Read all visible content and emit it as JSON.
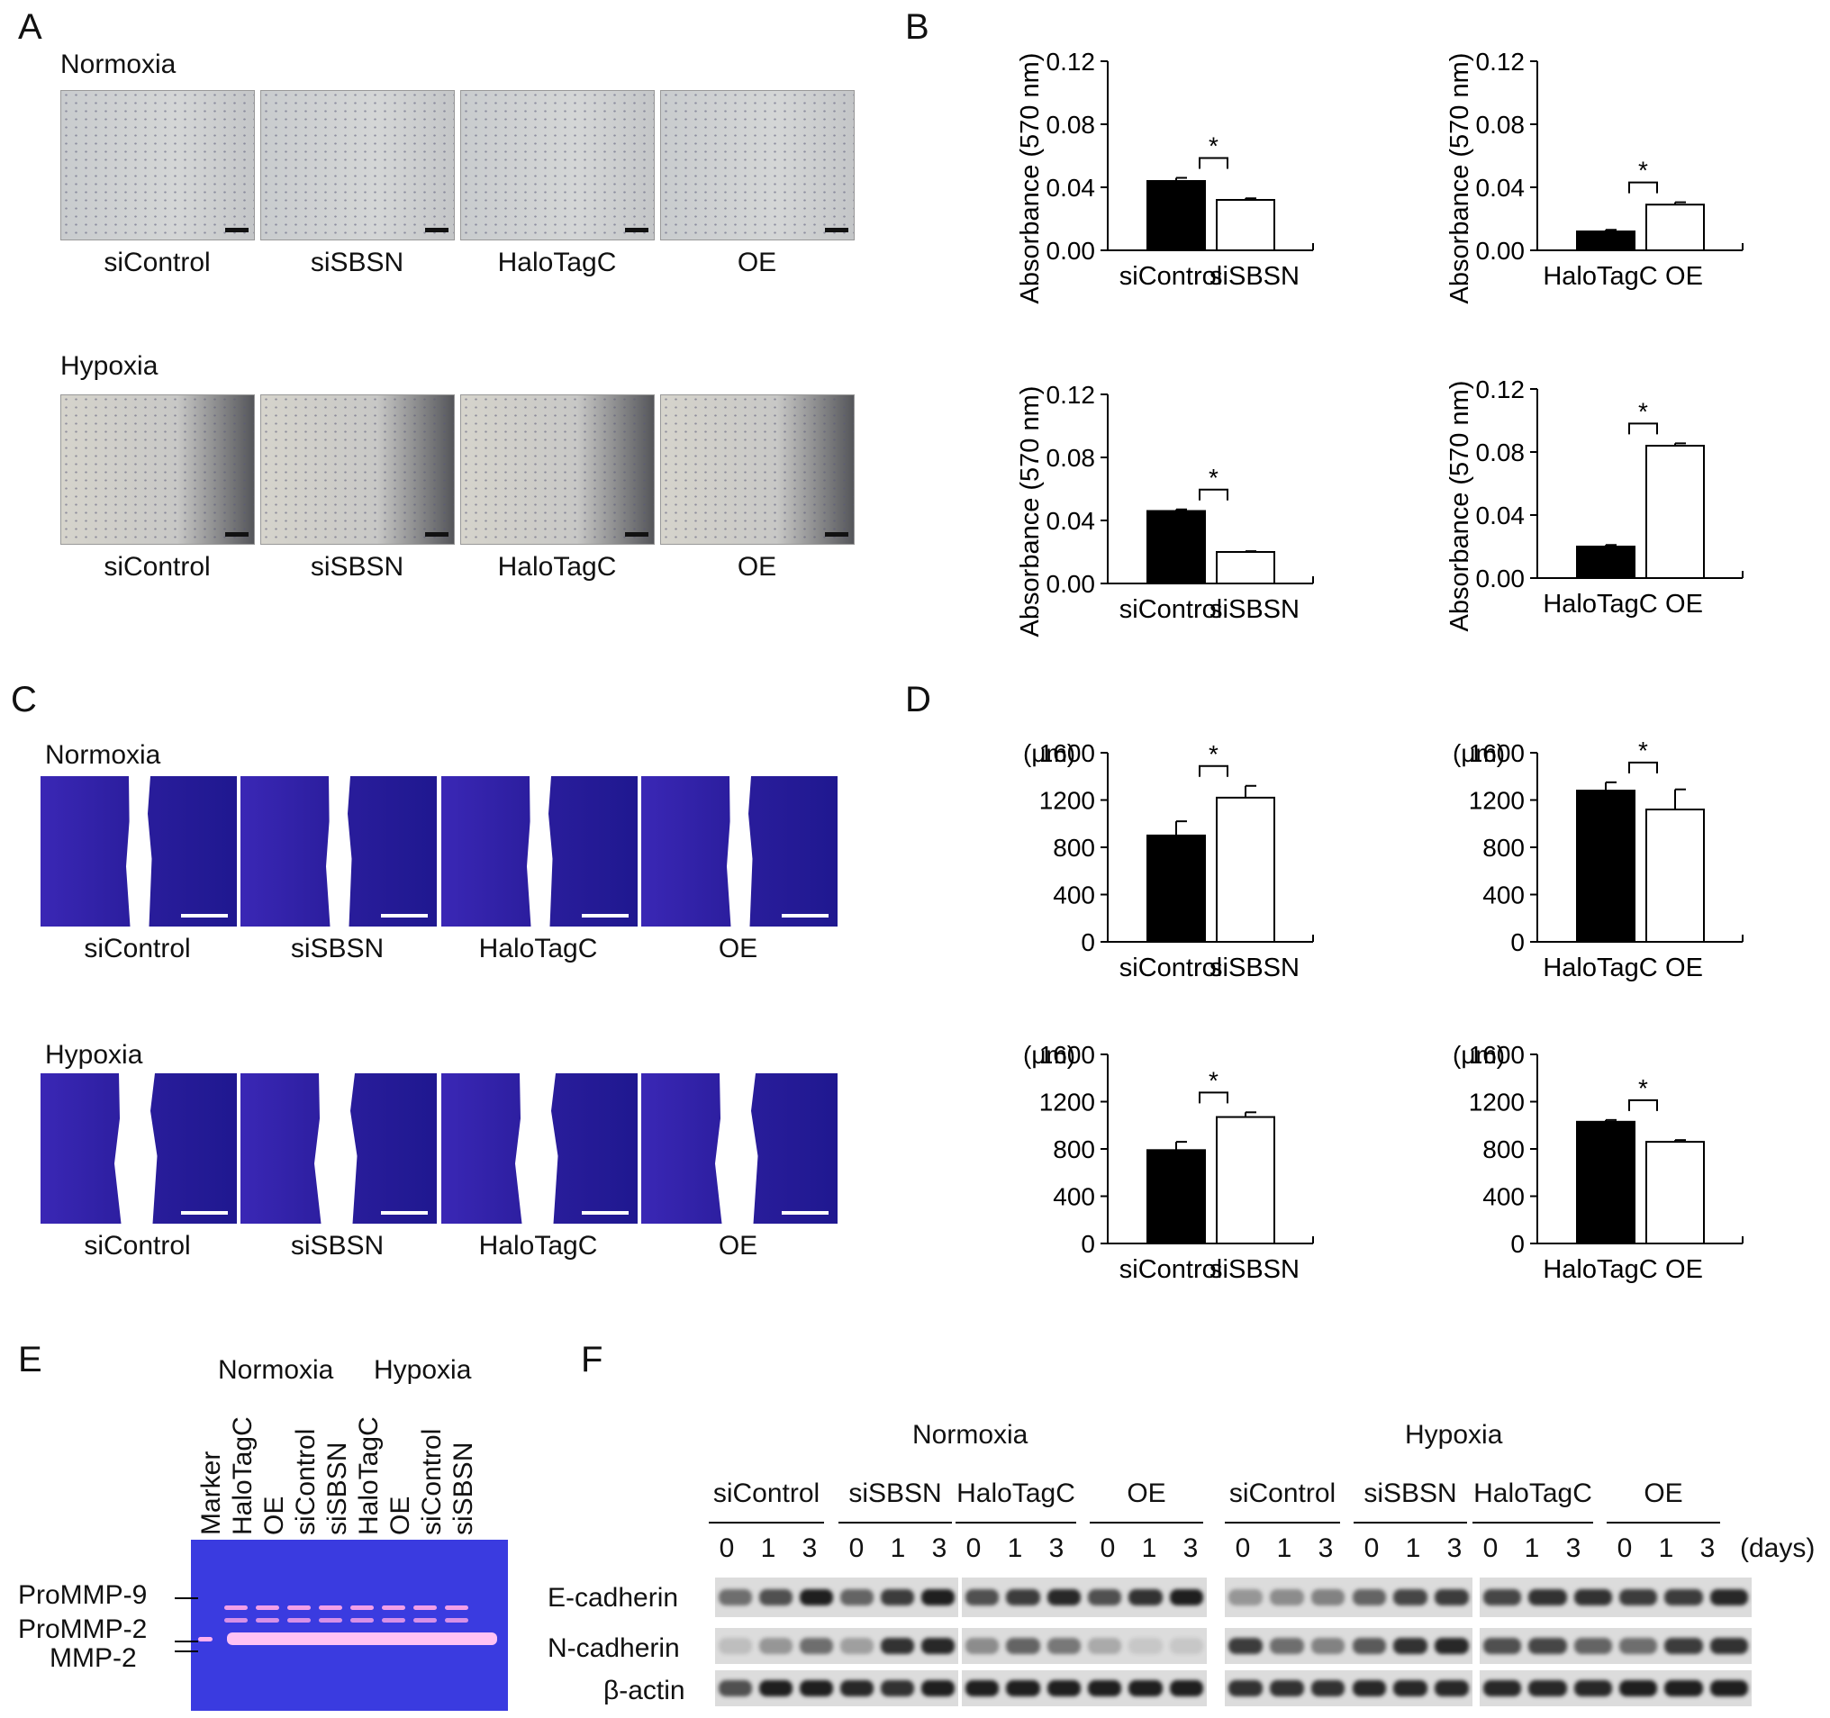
{
  "panels": {
    "A": {
      "letter": "A",
      "rows": [
        {
          "condition": "Normoxia",
          "labels": [
            "siControl",
            "siSBSN",
            "HaloTagC",
            "OE"
          ]
        },
        {
          "condition": "Hypoxia",
          "labels": [
            "siControl",
            "siSBSN",
            "HaloTagC",
            "OE"
          ]
        }
      ]
    },
    "B": {
      "letter": "B"
    },
    "C": {
      "letter": "C",
      "rows": [
        {
          "condition": "Normoxia",
          "labels": [
            "siControl",
            "siSBSN",
            "HaloTagC",
            "OE"
          ]
        },
        {
          "condition": "Hypoxia",
          "labels": [
            "siControl",
            "siSBSN",
            "HaloTagC",
            "OE"
          ]
        }
      ]
    },
    "D": {
      "letter": "D"
    },
    "E": {
      "letter": "E",
      "groups": [
        "Normoxia",
        "Hypoxia"
      ],
      "lanes": [
        "Marker",
        "HaloTagC",
        "OE",
        "siControl",
        "siSBSN",
        "HaloTagC",
        "OE",
        "siControl",
        "siSBSN"
      ],
      "bands": [
        "ProMMP-9",
        "ProMMP-2",
        "MMP-2"
      ],
      "colors": {
        "gel": "#3a3be0",
        "band": "#f2a0e8"
      }
    },
    "F": {
      "letter": "F",
      "conditions": [
        "Normoxia",
        "Hypoxia"
      ],
      "groups": [
        "siControl",
        "siSBSN",
        "HaloTagC",
        "OE",
        "siControl",
        "siSBSN",
        "HaloTagC",
        "OE"
      ],
      "days": [
        "0",
        "1",
        "3"
      ],
      "days_unit": "(days)",
      "proteins": [
        "E-cadherin",
        "N-cadherin",
        "β-actin"
      ]
    }
  },
  "chart_data": [
    {
      "type": "bar",
      "panel": "B",
      "ylabel": "Absorbance (570 nm)",
      "categories": [
        "siControl",
        "siSBSN"
      ],
      "values": [
        0.044,
        0.032
      ],
      "errors": [
        0.002,
        0.001
      ],
      "ylim": [
        0,
        0.12
      ],
      "yticks": [
        "0.00",
        "0.04",
        "0.08",
        "0.12"
      ],
      "significance": "*",
      "colors": [
        "#000000",
        "#ffffff"
      ]
    },
    {
      "type": "bar",
      "panel": "B",
      "ylabel": "Absorbance (570 nm)",
      "categories": [
        "HaloTagC",
        "OE"
      ],
      "values": [
        0.012,
        0.029
      ],
      "errors": [
        0.001,
        0.0015
      ],
      "ylim": [
        0,
        0.12
      ],
      "yticks": [
        "0.00",
        "0.04",
        "0.08",
        "0.12"
      ],
      "significance": "*",
      "colors": [
        "#000000",
        "#ffffff"
      ]
    },
    {
      "type": "bar",
      "panel": "B",
      "ylabel": "Absorbance (570 nm)",
      "categories": [
        "siControl",
        "siSBSN"
      ],
      "values": [
        0.046,
        0.02
      ],
      "errors": [
        0.001,
        0.0005
      ],
      "ylim": [
        0,
        0.12
      ],
      "yticks": [
        "0.00",
        "0.04",
        "0.08",
        "0.12"
      ],
      "significance": "*",
      "colors": [
        "#000000",
        "#ffffff"
      ]
    },
    {
      "type": "bar",
      "panel": "B",
      "ylabel": "Absorbance (570 nm)",
      "categories": [
        "HaloTagC",
        "OE"
      ],
      "values": [
        0.02,
        0.084
      ],
      "errors": [
        0.001,
        0.0015
      ],
      "ylim": [
        0,
        0.12
      ],
      "yticks": [
        "0.00",
        "0.04",
        "0.08",
        "0.12"
      ],
      "significance": "*",
      "colors": [
        "#000000",
        "#ffffff"
      ]
    },
    {
      "type": "bar",
      "panel": "D",
      "ylabel": "(μm)",
      "categories": [
        "siControl",
        "siSBSN"
      ],
      "values": [
        900,
        1220
      ],
      "errors": [
        120,
        100
      ],
      "ylim": [
        0,
        1600
      ],
      "yticks": [
        "0",
        "400",
        "800",
        "1200",
        "1600"
      ],
      "significance": "*",
      "colors": [
        "#000000",
        "#ffffff"
      ]
    },
    {
      "type": "bar",
      "panel": "D",
      "ylabel": "(μm)",
      "categories": [
        "HaloTagC",
        "OE"
      ],
      "values": [
        1280,
        1120
      ],
      "errors": [
        70,
        170
      ],
      "ylim": [
        0,
        1600
      ],
      "yticks": [
        "0",
        "400",
        "800",
        "1200",
        "1600"
      ],
      "significance": "*",
      "colors": [
        "#000000",
        "#ffffff"
      ]
    },
    {
      "type": "bar",
      "panel": "D",
      "ylabel": "(μm)",
      "categories": [
        "siControl",
        "siSBSN"
      ],
      "values": [
        790,
        1070
      ],
      "errors": [
        70,
        40
      ],
      "ylim": [
        0,
        1600
      ],
      "yticks": [
        "0",
        "400",
        "800",
        "1200",
        "1600"
      ],
      "significance": "*",
      "colors": [
        "#000000",
        "#ffffff"
      ]
    },
    {
      "type": "bar",
      "panel": "D",
      "ylabel": "(μm)",
      "categories": [
        "HaloTagC",
        "OE"
      ],
      "values": [
        1030,
        860
      ],
      "errors": [
        15,
        15
      ],
      "ylim": [
        0,
        1600
      ],
      "yticks": [
        "0",
        "400",
        "800",
        "1200",
        "1600"
      ],
      "significance": "*",
      "colors": [
        "#000000",
        "#ffffff"
      ]
    }
  ]
}
